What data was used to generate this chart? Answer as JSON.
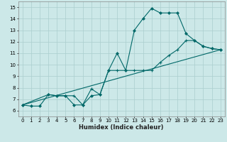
{
  "xlabel": "Humidex (Indice chaleur)",
  "xlim": [
    -0.5,
    23.5
  ],
  "ylim": [
    5.5,
    15.5
  ],
  "xticks": [
    0,
    1,
    2,
    3,
    4,
    5,
    6,
    7,
    8,
    9,
    10,
    11,
    12,
    13,
    14,
    15,
    16,
    17,
    18,
    19,
    20,
    21,
    22,
    23
  ],
  "yticks": [
    6,
    7,
    8,
    9,
    10,
    11,
    12,
    13,
    14,
    15
  ],
  "bg_color": "#cce8e8",
  "grid_color": "#aacece",
  "line_color": "#006868",
  "line1_x": [
    0,
    1,
    2,
    3,
    4,
    5,
    6,
    7,
    8,
    9,
    10,
    11,
    12,
    13,
    14,
    15,
    16,
    17,
    18,
    19,
    20,
    21,
    22,
    23
  ],
  "line1_y": [
    6.5,
    6.4,
    6.4,
    7.4,
    7.3,
    7.3,
    6.5,
    6.5,
    7.3,
    7.4,
    9.5,
    11.0,
    9.5,
    13.0,
    14.0,
    14.9,
    14.5,
    14.5,
    14.5,
    12.7,
    12.1,
    11.6,
    11.4,
    11.3
  ],
  "line2_x": [
    0,
    3,
    4,
    5,
    6,
    7,
    8,
    9,
    10,
    11,
    12,
    13,
    14,
    15,
    16,
    17,
    18,
    19,
    20,
    21,
    22,
    23
  ],
  "line2_y": [
    6.5,
    7.4,
    7.3,
    7.3,
    7.3,
    6.5,
    7.9,
    7.4,
    9.5,
    9.5,
    9.5,
    9.5,
    9.5,
    9.5,
    10.2,
    10.8,
    11.3,
    12.1,
    12.1,
    11.6,
    11.4,
    11.3
  ],
  "line3_x": [
    0,
    23
  ],
  "line3_y": [
    6.5,
    11.3
  ]
}
